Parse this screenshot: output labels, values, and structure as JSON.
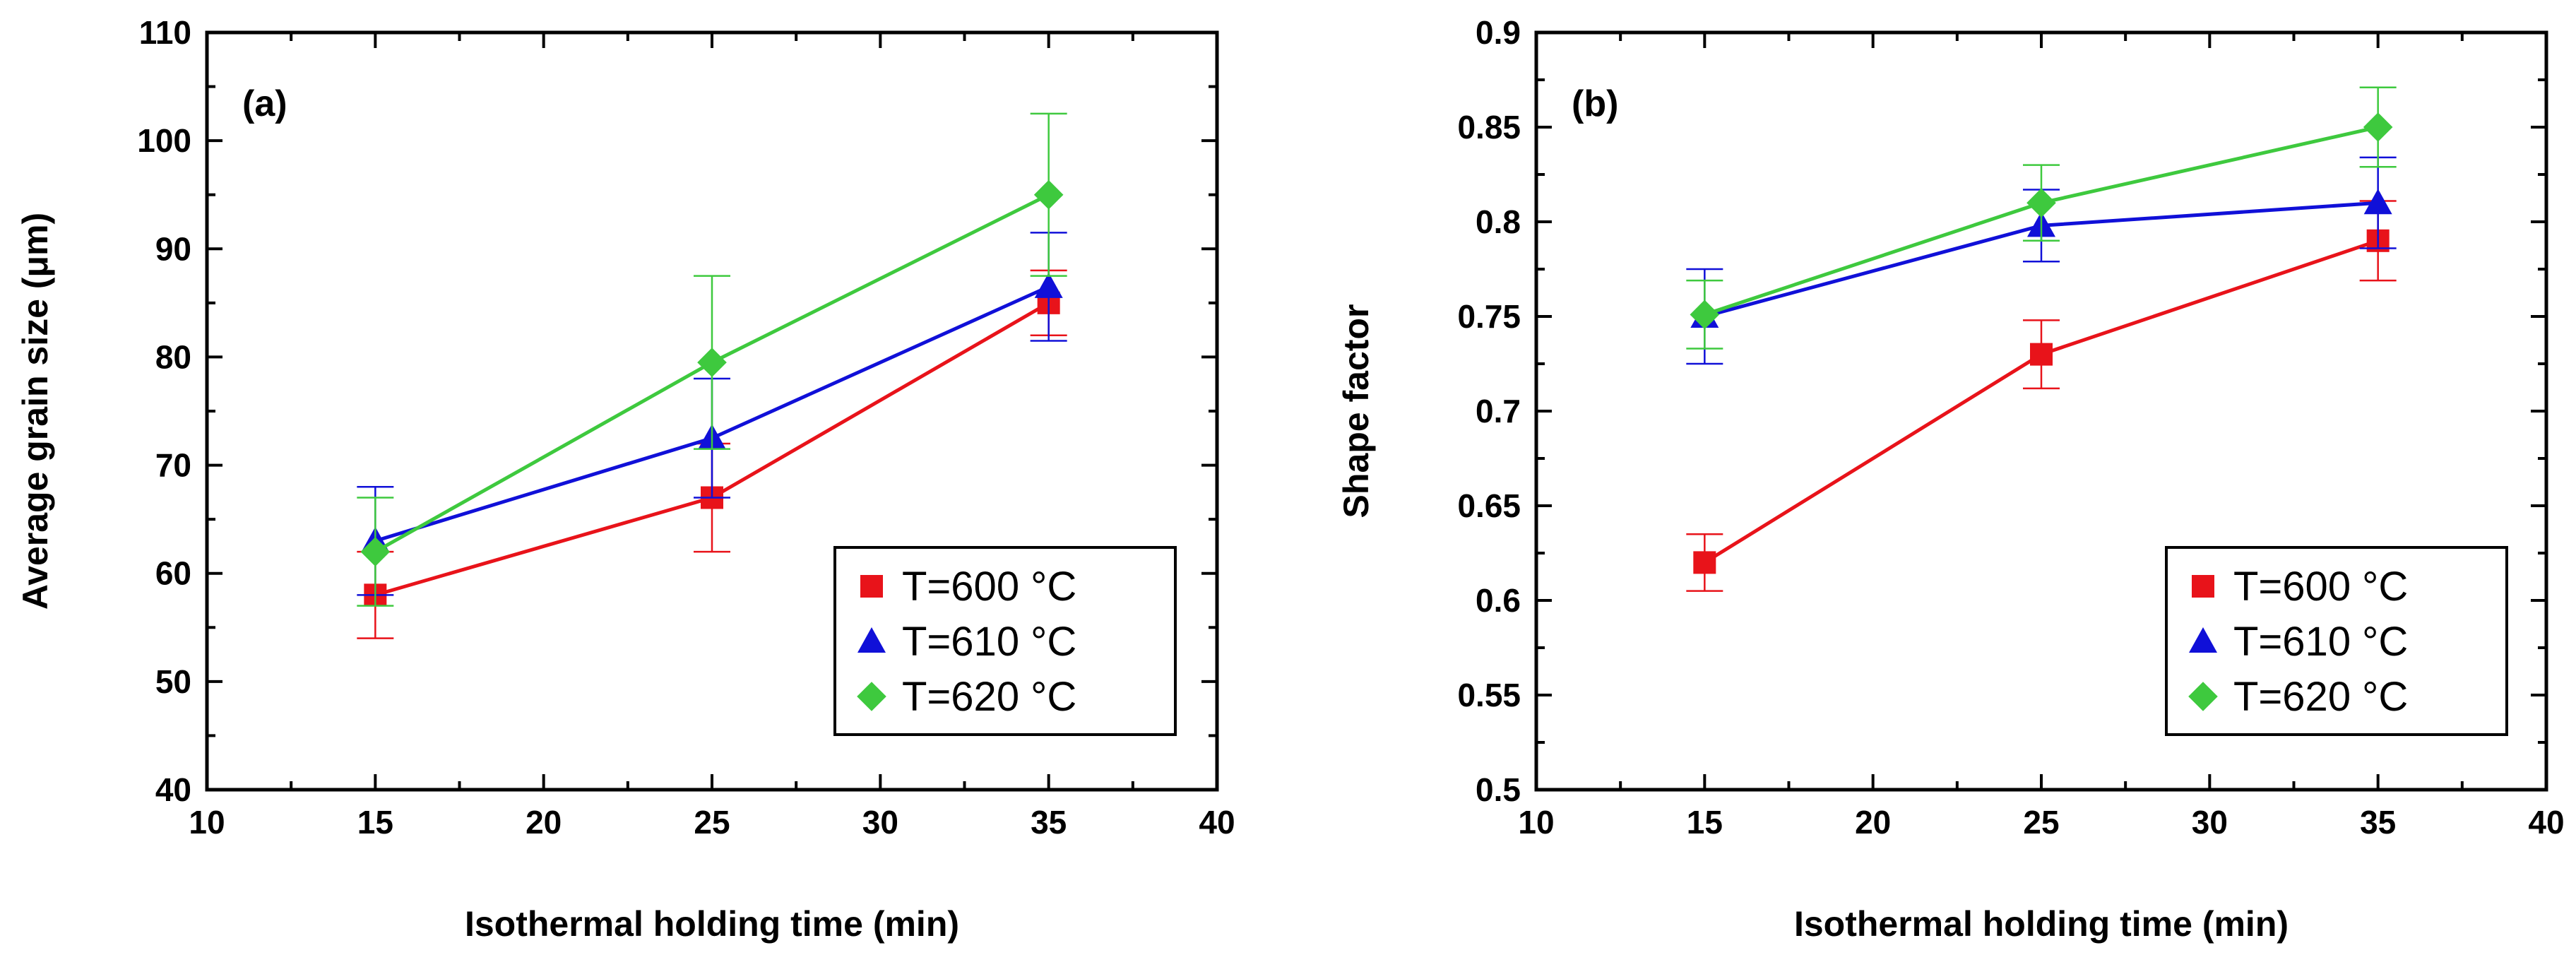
{
  "chart_data": [
    {
      "type": "line",
      "panel_label": "(a)",
      "xlabel": "Isothermal holding time (min)",
      "ylabel": "Average grain size (μm)",
      "xlim": [
        10,
        40
      ],
      "ylim": [
        40,
        110
      ],
      "x_ticks": [
        10,
        15,
        20,
        25,
        30,
        35,
        40
      ],
      "y_ticks": [
        40,
        50,
        60,
        70,
        80,
        90,
        100,
        110
      ],
      "x_minor_step": 2.5,
      "y_minor_step": 5,
      "legend_position": "bottom-right",
      "x": [
        15,
        25,
        35
      ],
      "series": [
        {
          "name": "T=600 °C",
          "color": "#e8131a",
          "marker": "square",
          "values": [
            58,
            67,
            85
          ],
          "err_low": [
            4,
            5,
            3
          ],
          "err_high": [
            4,
            5,
            3
          ]
        },
        {
          "name": "T=610 °C",
          "color": "#1010d8",
          "marker": "triangle",
          "values": [
            63,
            72.5,
            86.5
          ],
          "err_low": [
            5,
            5.5,
            5
          ],
          "err_high": [
            5,
            5.5,
            5
          ]
        },
        {
          "name": "T=620 °C",
          "color": "#3ec93e",
          "marker": "diamond",
          "values": [
            62,
            79.5,
            95
          ],
          "err_low": [
            5,
            8,
            7.5
          ],
          "err_high": [
            5,
            8,
            7.5
          ]
        }
      ]
    },
    {
      "type": "line",
      "panel_label": "(b)",
      "xlabel": "Isothermal holding time (min)",
      "ylabel": "Shape factor",
      "xlim": [
        10,
        40
      ],
      "ylim": [
        0.5,
        0.9
      ],
      "x_ticks": [
        10,
        15,
        20,
        25,
        30,
        35,
        40
      ],
      "y_ticks": [
        0.5,
        0.55,
        0.6,
        0.65,
        0.7,
        0.75,
        0.8,
        0.85,
        0.9
      ],
      "x_minor_step": 2.5,
      "y_minor_step": 0.025,
      "legend_position": "bottom-right",
      "x": [
        15,
        25,
        35
      ],
      "series": [
        {
          "name": "T=600 °C",
          "color": "#e8131a",
          "marker": "square",
          "values": [
            0.62,
            0.73,
            0.79
          ],
          "err_low": [
            0.015,
            0.018,
            0.021
          ],
          "err_high": [
            0.015,
            0.018,
            0.021
          ]
        },
        {
          "name": "T=610 °C",
          "color": "#1010d8",
          "marker": "triangle",
          "values": [
            0.75,
            0.798,
            0.81
          ],
          "err_low": [
            0.025,
            0.019,
            0.024
          ],
          "err_high": [
            0.025,
            0.019,
            0.024
          ]
        },
        {
          "name": "T=620 °C",
          "color": "#3ec93e",
          "marker": "diamond",
          "values": [
            0.751,
            0.81,
            0.85
          ],
          "err_low": [
            0.018,
            0.02,
            0.021
          ],
          "err_high": [
            0.018,
            0.02,
            0.021
          ]
        }
      ]
    }
  ]
}
